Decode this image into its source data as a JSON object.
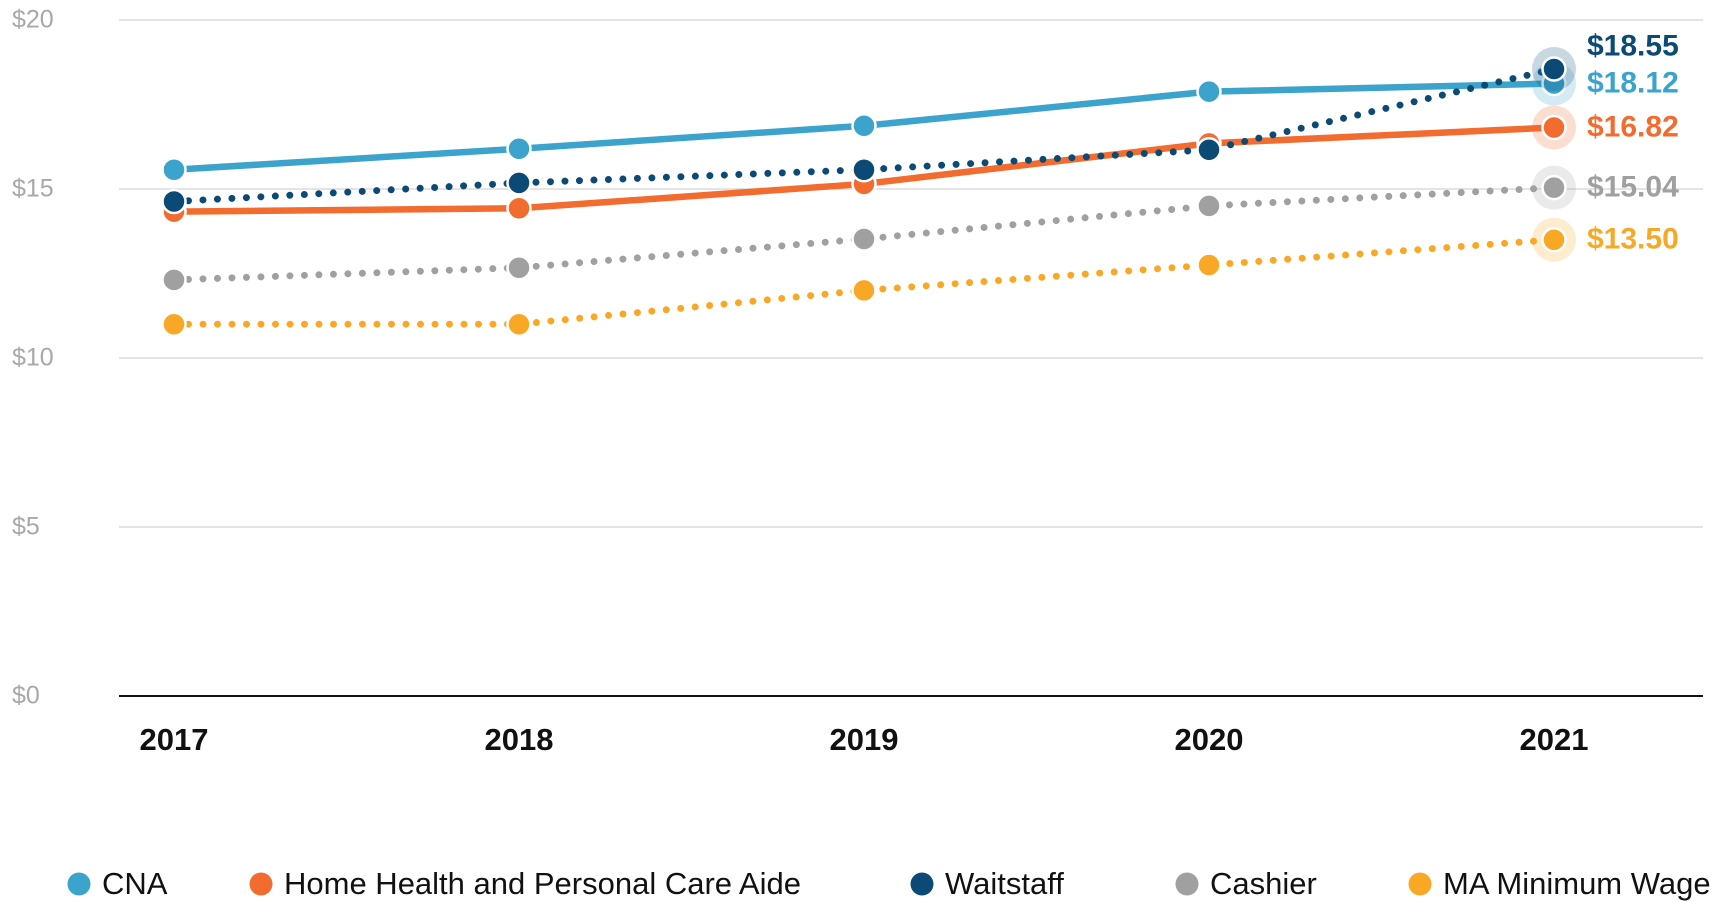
{
  "chart_data": {
    "type": "line",
    "categories": [
      "2017",
      "2018",
      "2019",
      "2020",
      "2021"
    ],
    "ylim": [
      0,
      20
    ],
    "yticks": [
      {
        "value": 0,
        "label": "$0"
      },
      {
        "value": 5,
        "label": "$5"
      },
      {
        "value": 10,
        "label": "$10"
      },
      {
        "value": 15,
        "label": "$15"
      },
      {
        "value": 20,
        "label": "$20"
      }
    ],
    "grid": true,
    "legend": "bottom",
    "series": [
      {
        "name": "CNA",
        "color": "#3ba3cc",
        "style": "solid",
        "values": [
          15.57,
          16.19,
          16.87,
          17.88,
          18.12
        ],
        "value_labels": [
          null,
          null,
          null,
          null,
          "$18.12"
        ]
      },
      {
        "name": "Home Health and Personal Care Aide",
        "color": "#f26b2f",
        "style": "solid",
        "values": [
          14.33,
          14.43,
          15.15,
          16.35,
          16.82
        ],
        "value_labels": [
          null,
          null,
          null,
          null,
          "$16.82"
        ]
      },
      {
        "name": "Waitstaff",
        "color": "#0b4a75",
        "style": "dotted",
        "values": [
          14.63,
          15.18,
          15.57,
          16.16,
          18.55
        ],
        "value_labels": [
          null,
          null,
          null,
          null,
          "$18.55"
        ]
      },
      {
        "name": "Cashier",
        "color": "#a0a0a0",
        "style": "dotted",
        "values": [
          12.31,
          12.67,
          13.52,
          14.5,
          15.04
        ],
        "value_labels": [
          null,
          null,
          null,
          null,
          "$15.04"
        ]
      },
      {
        "name": "MA Minimum Wage",
        "color": "#f9a825",
        "style": "dotted",
        "values": [
          11,
          11,
          12,
          12.75,
          13.5
        ],
        "value_labels": [
          null,
          null,
          null,
          null,
          "$13.50"
        ]
      }
    ]
  }
}
